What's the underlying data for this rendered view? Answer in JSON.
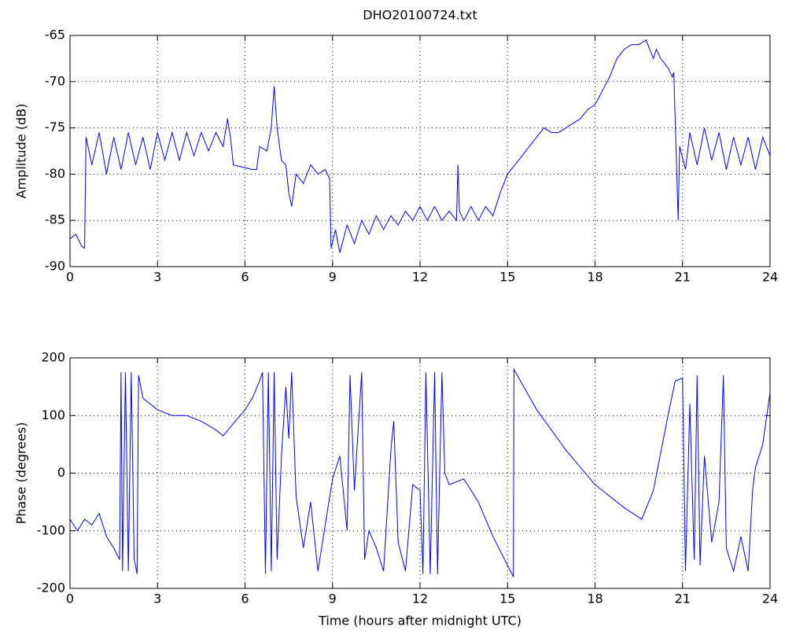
{
  "chart_data": [
    {
      "type": "line",
      "title": "DHO20100724.txt",
      "y_label": "Amplitude (dB)",
      "color": "#0000ff",
      "grid": true,
      "xlim": [
        0,
        24
      ],
      "xticks": [
        0,
        3,
        6,
        9,
        12,
        15,
        18,
        21,
        24
      ],
      "ylim": [
        -90,
        -65
      ],
      "yticks": [
        -90,
        -85,
        -80,
        -75,
        -70,
        -65
      ],
      "x": [
        0,
        0.2,
        0.4,
        0.5,
        0.55,
        0.75,
        1,
        1.25,
        1.5,
        1.75,
        2,
        2.25,
        2.5,
        2.75,
        3,
        3.25,
        3.5,
        3.75,
        4,
        4.25,
        4.5,
        4.75,
        5,
        5.25,
        5.4,
        5.5,
        5.6,
        6,
        6.25,
        6.4,
        6.5,
        6.75,
        6.9,
        7,
        7.1,
        7.25,
        7.4,
        7.5,
        7.6,
        7.75,
        8,
        8.25,
        8.5,
        8.75,
        8.9,
        8.95,
        9.1,
        9.25,
        9.5,
        9.75,
        10,
        10.25,
        10.5,
        10.75,
        11,
        11.25,
        11.5,
        11.75,
        12,
        12.25,
        12.5,
        12.75,
        13,
        13.25,
        13.3,
        13.35,
        13.5,
        13.75,
        14,
        14.25,
        14.5,
        14.75,
        15,
        15.25,
        15.5,
        15.75,
        16,
        16.25,
        16.5,
        16.75,
        17,
        17.25,
        17.5,
        17.75,
        18,
        18.25,
        18.5,
        18.75,
        19,
        19.25,
        19.5,
        19.75,
        20,
        20.1,
        20.25,
        20.5,
        20.65,
        20.7,
        20.85,
        20.9,
        21.1,
        21.25,
        21.5,
        21.75,
        22,
        22.25,
        22.5,
        22.75,
        23,
        23.25,
        23.5,
        23.75,
        24
      ],
      "values": [
        -87,
        -86.5,
        -87.8,
        -88,
        -76,
        -79,
        -75.5,
        -80,
        -76,
        -79.5,
        -75.5,
        -79,
        -76,
        -79.5,
        -75.5,
        -78.5,
        -75.5,
        -78.5,
        -75.5,
        -78,
        -75.5,
        -77.5,
        -75.5,
        -77,
        -74,
        -76,
        -79,
        -79.3,
        -79.5,
        -79.5,
        -77,
        -77.5,
        -75,
        -70.5,
        -75,
        -78.5,
        -79,
        -82,
        -83.5,
        -80,
        -81,
        -79,
        -80,
        -79.5,
        -80.5,
        -88,
        -86,
        -88.5,
        -85.5,
        -87.5,
        -85,
        -86.5,
        -84.5,
        -86,
        -84.5,
        -85.5,
        -84,
        -85,
        -83.5,
        -85,
        -83.5,
        -85,
        -84,
        -85,
        -79,
        -84,
        -85,
        -83.5,
        -85,
        -83.5,
        -84.5,
        -82,
        -80,
        -79,
        -78,
        -77,
        -76,
        -75,
        -75.5,
        -75.5,
        -75,
        -74.5,
        -74,
        -73,
        -72.5,
        -71,
        -69.5,
        -67.5,
        -66.5,
        -66,
        -66,
        -65.5,
        -67.5,
        -66.5,
        -67.5,
        -68.5,
        -69.5,
        -69,
        -85,
        -77,
        -79.5,
        -75.5,
        -79,
        -75,
        -78.5,
        -75.5,
        -79.5,
        -76,
        -79,
        -76,
        -79.5,
        -76,
        -78
      ]
    },
    {
      "type": "line",
      "y_label": "Phase (degrees)",
      "x_label": "Time (hours after midnight UTC)",
      "color": "#0000ff",
      "grid": true,
      "xlim": [
        0,
        24
      ],
      "xticks": [
        0,
        3,
        6,
        9,
        12,
        15,
        18,
        21,
        24
      ],
      "ylim": [
        -200,
        200
      ],
      "yticks": [
        -200,
        -100,
        0,
        100,
        200
      ],
      "x": [
        0,
        0.25,
        0.5,
        0.75,
        1,
        1.25,
        1.5,
        1.7,
        1.75,
        1.8,
        1.9,
        2,
        2.1,
        2.2,
        2.3,
        2.35,
        2.5,
        3,
        3.5,
        4,
        4.5,
        5,
        5.25,
        5.5,
        6,
        6.25,
        6.5,
        6.6,
        6.7,
        6.8,
        6.9,
        7,
        7.1,
        7.25,
        7.4,
        7.5,
        7.6,
        7.75,
        8,
        8.25,
        8.5,
        8.75,
        9,
        9.25,
        9.5,
        9.6,
        9.75,
        10,
        10.1,
        10.25,
        10.5,
        10.75,
        11,
        11.1,
        11.25,
        11.5,
        11.75,
        12,
        12.1,
        12.2,
        12.35,
        12.5,
        12.6,
        12.75,
        12.85,
        13,
        13.5,
        14,
        14.5,
        15,
        15.2,
        15.22,
        16,
        17,
        18,
        19,
        19.6,
        20,
        20.5,
        20.75,
        21,
        21.1,
        21.25,
        21.4,
        21.5,
        21.6,
        21.75,
        22,
        22.25,
        22.4,
        22.5,
        22.75,
        23,
        23.25,
        23.4,
        23.5,
        23.75,
        24
      ],
      "values": [
        -80,
        -100,
        -80,
        -90,
        -70,
        -110,
        -130,
        -150,
        175,
        -170,
        175,
        -170,
        175,
        -150,
        -175,
        170,
        130,
        110,
        100,
        100,
        90,
        75,
        65,
        80,
        110,
        130,
        160,
        175,
        -175,
        175,
        -170,
        175,
        -150,
        30,
        150,
        60,
        175,
        -40,
        -130,
        -50,
        -170,
        -90,
        -10,
        30,
        -100,
        170,
        -30,
        175,
        -150,
        -100,
        -130,
        -170,
        40,
        90,
        -120,
        -170,
        -20,
        -30,
        -175,
        175,
        -175,
        175,
        -175,
        175,
        0,
        -20,
        -10,
        -50,
        -110,
        -160,
        -180,
        180,
        110,
        40,
        -20,
        -60,
        -80,
        -30,
        100,
        160,
        165,
        -170,
        120,
        -150,
        170,
        -160,
        30,
        -120,
        -50,
        170,
        -130,
        -170,
        -110,
        -170,
        -30,
        10,
        50,
        140
      ]
    }
  ]
}
